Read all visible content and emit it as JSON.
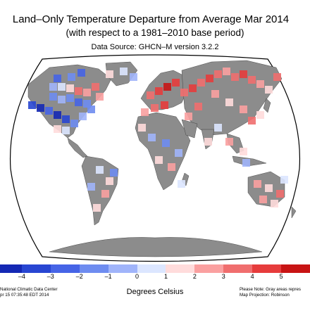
{
  "title": "Land–Only Temperature Departure from Average Mar 2014",
  "subtitle": "(with respect to a 1981–2010 base period)",
  "source": "Data Source: GHCN–M version 3.2.2",
  "colorbar": {
    "ticks": [
      "–5",
      "–4",
      "–3",
      "–2",
      "–1",
      "0",
      "1",
      "2",
      "3",
      "4",
      "5"
    ],
    "units": "Degrees Celsius",
    "colors": [
      "#1428b4",
      "#2846d2",
      "#4664e6",
      "#6e8cf0",
      "#a0b4fa",
      "#dce6ff",
      "#ffdcdc",
      "#faa0a0",
      "#f06e6e",
      "#e63c3c",
      "#c81414"
    ]
  },
  "footer": {
    "left_line1": "National Climatic Data Center",
    "left_line2": "pr 15 07:35:48 EDT 2014",
    "right_line1": "Please Note: Gray areas repres",
    "right_line2": "Map Projection: Robinson"
  },
  "map": {
    "projection": "Robinson",
    "land_color": "#8c8c8c",
    "missing_note": "Gray areas represent missing data"
  }
}
